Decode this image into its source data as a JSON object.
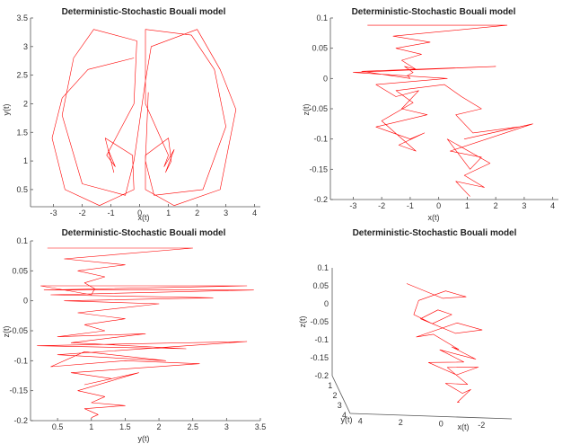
{
  "line_color": "#ff0000",
  "chart_data": [
    {
      "type": "line",
      "title": "Deterministic-Stochastic Bouali model",
      "xlabel": "x(t)",
      "ylabel": "y(t)",
      "xlim": [
        -3.8,
        4.2
      ],
      "ylim": [
        0.2,
        3.5
      ],
      "xticks": [
        -3,
        -2,
        -1,
        0,
        1,
        2,
        3,
        4
      ],
      "yticks": [
        0.5,
        1,
        1.5,
        2,
        2.5,
        3,
        3.5
      ],
      "grid": false,
      "legend": "none",
      "series": [
        {
          "x": [
            -0.2,
            -1.8,
            -2.7,
            -3.05,
            -2.6,
            -1.4,
            -0.2,
            -0.25,
            -1.2,
            -1.0,
            -0.9,
            -1.1,
            -0.85,
            -1.15,
            -0.2,
            -0.1,
            -1.6,
            -2.3,
            -2.7,
            -2.0,
            -0.5,
            -0.2,
            0.2,
            0.4,
            2.0,
            2.8,
            3.35,
            2.8,
            1.2,
            0.2,
            0.2,
            1.0,
            1.1,
            0.9,
            1.2,
            0.85,
            1.0,
            0.2,
            0.2,
            1.8,
            2.6,
            3.0,
            2.2,
            0.5,
            0.2,
            0.3
          ],
          "y": [
            2.8,
            2.6,
            2.1,
            1.4,
            0.5,
            0.22,
            0.5,
            1.1,
            1.4,
            1.0,
            0.8,
            1.2,
            0.9,
            1.1,
            2.0,
            3.1,
            3.3,
            2.8,
            1.8,
            0.6,
            0.4,
            1.0,
            2.4,
            3.0,
            3.3,
            2.6,
            1.9,
            0.5,
            0.22,
            0.5,
            1.1,
            1.4,
            1.0,
            0.8,
            1.2,
            0.9,
            1.1,
            2.0,
            3.3,
            3.2,
            2.6,
            1.6,
            0.5,
            0.4,
            1.0,
            2.2
          ]
        }
      ]
    },
    {
      "type": "line",
      "title": "Deterministic-Stochastic Bouali model",
      "xlabel": "x(t)",
      "ylabel": "z(t)",
      "xlim": [
        -3.8,
        4.2
      ],
      "ylim": [
        -0.2,
        0.1
      ],
      "xticks": [
        -3,
        -2,
        -1,
        0,
        1,
        2,
        3,
        4
      ],
      "yticks": [
        -0.2,
        -0.15,
        -0.1,
        -0.05,
        0,
        0.05,
        0.1
      ],
      "grid": false,
      "legend": "none",
      "series": [
        {
          "x": [
            -2.5,
            2.4,
            -1.6,
            -0.3,
            -1.5,
            -0.6,
            -1.3,
            -0.8,
            -1.2,
            -0.9,
            -1.1,
            -1.0,
            -2.7,
            2.0,
            -3.0,
            0.3,
            -2.2,
            -1.5,
            -0.7,
            -1.3,
            -0.4,
            -2.2,
            -1.0,
            -0.5,
            -1.4,
            -0.8,
            -2.0,
            -0.9,
            -1.5,
            0.2,
            0.8,
            1.5,
            0.6,
            1.2,
            2.8,
            0.9,
            3.3,
            0.4,
            1.5,
            1.1,
            0.3,
            1.8,
            0.9,
            1.6,
            0.6,
            1.0,
            1.1
          ],
          "y": [
            0.088,
            0.088,
            0.07,
            0.06,
            0.05,
            0.04,
            0.03,
            0.015,
            0.02,
            0.01,
            0.005,
            0.0,
            0.012,
            0.02,
            0.01,
            0.0,
            -0.01,
            -0.03,
            -0.02,
            -0.05,
            -0.06,
            -0.08,
            -0.1,
            -0.09,
            -0.11,
            -0.12,
            -0.07,
            -0.04,
            -0.02,
            -0.01,
            -0.03,
            -0.05,
            -0.06,
            -0.09,
            -0.08,
            -0.1,
            -0.075,
            -0.12,
            -0.13,
            -0.15,
            -0.1,
            -0.14,
            -0.16,
            -0.18,
            -0.17,
            -0.19,
            -0.195
          ]
        }
      ]
    },
    {
      "type": "line",
      "title": "Deterministic-Stochastic Bouali model",
      "xlabel": "y(t)",
      "ylabel": "z(t)",
      "xlim": [
        0.1,
        3.5
      ],
      "ylim": [
        -0.2,
        0.1
      ],
      "xticks": [
        0.5,
        1,
        1.5,
        2,
        2.5,
        3,
        3.5
      ],
      "yticks": [
        -0.2,
        -0.15,
        -0.1,
        -0.05,
        0,
        0.05,
        0.1
      ],
      "grid": false,
      "legend": "none",
      "series": [
        {
          "x": [
            0.35,
            2.5,
            0.6,
            1.5,
            0.8,
            1.2,
            0.9,
            1.05,
            1.0,
            0.25,
            3.3,
            0.3,
            3.4,
            0.4,
            2.8,
            0.6,
            2.0,
            0.8,
            1.5,
            0.9,
            1.2,
            0.5,
            1.8,
            0.7,
            2.4,
            0.2,
            3.3,
            0.5,
            2.1,
            0.9,
            0.4,
            1.5,
            2.6,
            0.7,
            1.3,
            0.9,
            1.7,
            0.8,
            1.2,
            1.0,
            1.5,
            0.9,
            1.1,
            1.0
          ],
          "y": [
            0.088,
            0.088,
            0.07,
            0.06,
            0.05,
            0.04,
            0.03,
            0.02,
            0.01,
            0.025,
            0.025,
            0.018,
            0.018,
            0.01,
            0.005,
            0.0,
            -0.005,
            -0.02,
            -0.03,
            -0.04,
            -0.05,
            -0.06,
            -0.055,
            -0.07,
            -0.08,
            -0.075,
            -0.068,
            -0.09,
            -0.1,
            -0.085,
            -0.11,
            -0.1,
            -0.105,
            -0.12,
            -0.13,
            -0.14,
            -0.12,
            -0.15,
            -0.16,
            -0.17,
            -0.175,
            -0.18,
            -0.19,
            -0.195
          ]
        }
      ]
    },
    {
      "type": "line",
      "title": "Deterministic-Stochastic Bouali model",
      "xlabel": "x(t)",
      "ylabel": "y(t)",
      "zlabel": "z(t)",
      "view": "3d",
      "xticks": [
        4,
        2,
        0,
        -2
      ],
      "yticks": [
        1,
        2,
        3,
        4
      ],
      "zticks": [
        0.1,
        0.05,
        0,
        -0.05,
        -0.1,
        -0.15,
        -0.2
      ],
      "xlim": [
        -3.5,
        4.5
      ],
      "ylim": [
        0.2,
        4
      ],
      "zlim": [
        -0.2,
        0.1
      ],
      "grid": false,
      "legend": "none",
      "series": [
        {
          "x": [
            1.0,
            -0.5,
            -1.8,
            -1.0,
            0.5,
            1.0,
            0.2,
            -1.0,
            -0.5,
            0.5,
            -1.0,
            -2.5,
            -1.5,
            0.8,
            -0.2,
            -1.2,
            -1.0,
            -2.0,
            -0.5,
            -1.5,
            0.2,
            -1.0,
            -2.2,
            -0.8,
            -1.5,
            -0.5,
            -1.2,
            -1.8,
            -0.9,
            -1.1
          ],
          "y": [
            1.0,
            2.2,
            1.6,
            0.7,
            1.4,
            2.5,
            3.0,
            2.0,
            1.2,
            1.8,
            2.8,
            2.0,
            1.0,
            2.2,
            1.5,
            2.6,
            2.0,
            2.8,
            1.6,
            2.4,
            2.2,
            3.0,
            2.5,
            1.9,
            3.2,
            2.8,
            3.4,
            2.6,
            3.6,
            3.2
          ],
          "z": [
            0.085,
            0.08,
            0.07,
            0.06,
            0.05,
            0.04,
            0.03,
            0.03,
            0.02,
            0.01,
            0.0,
            -0.01,
            -0.02,
            -0.03,
            -0.04,
            -0.05,
            -0.06,
            -0.07,
            -0.08,
            -0.09,
            -0.1,
            -0.11,
            -0.1,
            -0.12,
            -0.13,
            -0.14,
            -0.15,
            -0.16,
            -0.17,
            -0.18
          ]
        }
      ]
    }
  ]
}
